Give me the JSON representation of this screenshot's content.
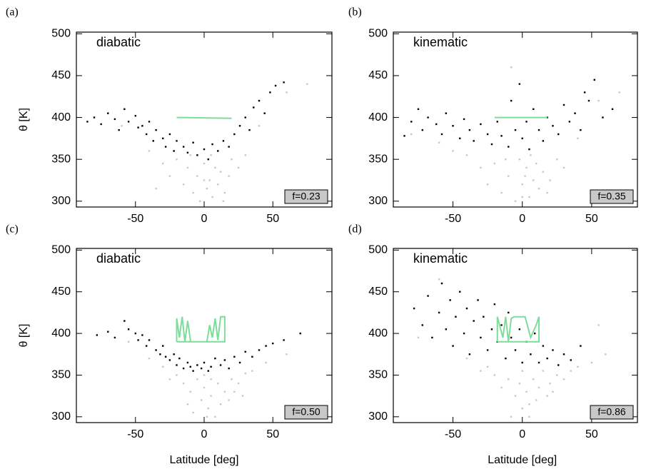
{
  "chart_data": [
    {
      "type": "scatter",
      "panel_label": "(a)",
      "annotation": "diabatic",
      "badge": "f=0.23",
      "ylabel": "θ [K]",
      "xlim": [
        -93,
        93
      ],
      "ylim": [
        293,
        502
      ],
      "xticks": [
        -50,
        0,
        50
      ],
      "yticks": [
        300,
        350,
        400,
        450,
        500
      ],
      "series": [
        {
          "color": "#c8c8c8",
          "mode": "markers",
          "x": [
            -60,
            -40,
            -30,
            -25,
            -20,
            -15,
            -12,
            -8,
            -5,
            -3,
            0,
            2,
            4,
            6,
            8,
            10,
            12,
            15,
            18,
            20,
            25,
            30,
            40,
            60,
            75,
            -35,
            -10,
            0,
            5,
            14
          ],
          "values": [
            390,
            360,
            345,
            330,
            350,
            320,
            340,
            310,
            330,
            300,
            345,
            315,
            325,
            305,
            340,
            320,
            335,
            310,
            330,
            350,
            340,
            355,
            390,
            430,
            440,
            315,
            355,
            325,
            355,
            300
          ]
        },
        {
          "color": "#000000",
          "mode": "markers",
          "x": [
            -85,
            -80,
            -75,
            -70,
            -65,
            -62,
            -58,
            -55,
            -50,
            -48,
            -45,
            -42,
            -40,
            -37,
            -35,
            -30,
            -28,
            -25,
            -22,
            -20,
            -15,
            -12,
            -8,
            -5,
            0,
            3,
            6,
            10,
            14,
            18,
            22,
            26,
            30,
            33,
            36,
            40,
            44,
            48,
            52,
            58
          ],
          "values": [
            395,
            400,
            392,
            405,
            398,
            385,
            410,
            395,
            402,
            388,
            390,
            380,
            395,
            372,
            385,
            375,
            365,
            380,
            360,
            372,
            365,
            358,
            370,
            355,
            362,
            350,
            368,
            360,
            372,
            365,
            380,
            390,
            400,
            385,
            412,
            420,
            405,
            430,
            438,
            442
          ]
        },
        {
          "color": "#7ddc9a",
          "mode": "line",
          "x": [
            -20,
            20
          ],
          "values": [
            400,
            399
          ]
        }
      ]
    },
    {
      "type": "scatter",
      "panel_label": "(b)",
      "annotation": "kinematic",
      "badge": "f=0.35",
      "xlim": [
        -93,
        83
      ],
      "ylim": [
        293,
        502
      ],
      "xticks": [
        -50,
        0,
        50
      ],
      "yticks": [
        300,
        350,
        400,
        450,
        500
      ],
      "series": [
        {
          "color": "#c8c8c8",
          "mode": "markers",
          "x": [
            -80,
            -60,
            -40,
            -30,
            -25,
            -20,
            -15,
            -10,
            -5,
            -2,
            0,
            3,
            5,
            8,
            10,
            12,
            15,
            20,
            25,
            30,
            40,
            55,
            70,
            -50,
            -8,
            0,
            6,
            18,
            -12,
            2
          ],
          "values": [
            380,
            370,
            355,
            340,
            320,
            345,
            310,
            330,
            300,
            350,
            320,
            340,
            305,
            325,
            345,
            315,
            335,
            325,
            350,
            340,
            375,
            420,
            430,
            360,
            460,
            305,
            355,
            310,
            350,
            330
          ]
        },
        {
          "color": "#000000",
          "mode": "markers",
          "x": [
            -85,
            -80,
            -75,
            -72,
            -68,
            -62,
            -58,
            -55,
            -50,
            -45,
            -42,
            -38,
            -35,
            -30,
            -25,
            -22,
            -18,
            -15,
            -10,
            -8,
            -5,
            -2,
            0,
            3,
            5,
            8,
            12,
            15,
            18,
            22,
            26,
            30,
            34,
            38,
            42,
            45,
            48,
            52,
            58,
            65
          ],
          "values": [
            378,
            395,
            410,
            385,
            400,
            392,
            380,
            405,
            390,
            375,
            398,
            385,
            372,
            392,
            380,
            368,
            395,
            378,
            365,
            420,
            385,
            440,
            375,
            395,
            362,
            410,
            385,
            372,
            400,
            390,
            380,
            415,
            395,
            405,
            385,
            430,
            420,
            445,
            400,
            410
          ]
        },
        {
          "color": "#7ddc9a",
          "mode": "line",
          "x": [
            -20,
            18
          ],
          "values": [
            400,
            400
          ]
        }
      ]
    },
    {
      "type": "scatter",
      "panel_label": "(c)",
      "annotation": "diabatic",
      "badge": "f=0.50",
      "ylabel": "θ [K]",
      "xlabel": "Latitude [deg]",
      "xlim": [
        -93,
        93
      ],
      "ylim": [
        293,
        502
      ],
      "xticks": [
        -50,
        0,
        50
      ],
      "yticks": [
        300,
        350,
        400,
        450,
        500
      ],
      "series": [
        {
          "color": "#c8c8c8",
          "mode": "markers",
          "x": [
            -40,
            -30,
            -20,
            -15,
            -10,
            -5,
            -2,
            0,
            3,
            5,
            8,
            10,
            12,
            15,
            20,
            25,
            30,
            -25,
            -8,
            0,
            18,
            35,
            45,
            60,
            -55,
            5,
            -12,
            22,
            2,
            28
          ],
          "values": [
            370,
            360,
            350,
            340,
            330,
            345,
            320,
            335,
            310,
            325,
            300,
            340,
            315,
            330,
            345,
            340,
            352,
            345,
            305,
            350,
            320,
            355,
            365,
            375,
            390,
            345,
            315,
            330,
            300,
            325
          ]
        },
        {
          "color": "#000000",
          "mode": "markers",
          "x": [
            -78,
            -70,
            -65,
            -58,
            -55,
            -50,
            -48,
            -45,
            -42,
            -40,
            -35,
            -32,
            -30,
            -28,
            -25,
            -22,
            -20,
            -18,
            -15,
            -12,
            -10,
            -8,
            -5,
            -2,
            0,
            3,
            5,
            8,
            12,
            15,
            18,
            22,
            26,
            30,
            35,
            40,
            45,
            50,
            58,
            70
          ],
          "values": [
            398,
            402,
            395,
            415,
            405,
            400,
            392,
            398,
            385,
            392,
            380,
            375,
            385,
            372,
            368,
            375,
            362,
            370,
            358,
            365,
            360,
            355,
            362,
            358,
            365,
            355,
            360,
            370,
            362,
            368,
            358,
            372,
            365,
            378,
            372,
            380,
            385,
            388,
            392,
            400
          ]
        },
        {
          "color": "#7ddc9a",
          "mode": "line",
          "x": [
            -20,
            -20,
            -18,
            -16,
            -14,
            -12,
            -10,
            -10,
            2,
            4,
            6,
            8,
            10,
            12,
            15,
            15,
            -20
          ],
          "values": [
            390,
            418,
            395,
            420,
            390,
            415,
            392,
            390,
            390,
            410,
            395,
            418,
            392,
            420,
            420,
            390,
            390
          ]
        }
      ]
    },
    {
      "type": "scatter",
      "panel_label": "(d)",
      "annotation": "kinematic",
      "badge": "f=0.86",
      "xlabel": "Latitude [deg]",
      "xlim": [
        -93,
        83
      ],
      "ylim": [
        293,
        502
      ],
      "xticks": [
        -50,
        0,
        50
      ],
      "yticks": [
        300,
        350,
        400,
        450,
        500
      ],
      "series": [
        {
          "color": "#c8c8c8",
          "mode": "markers",
          "x": [
            -40,
            -30,
            -20,
            -15,
            -10,
            -5,
            -2,
            0,
            3,
            5,
            8,
            10,
            12,
            15,
            20,
            25,
            30,
            -25,
            0,
            18,
            35,
            50,
            55,
            -60,
            -75,
            5,
            -8,
            22,
            40,
            60
          ],
          "values": [
            370,
            355,
            350,
            335,
            345,
            325,
            340,
            310,
            330,
            300,
            345,
            320,
            335,
            355,
            340,
            350,
            345,
            360,
            355,
            325,
            355,
            365,
            410,
            465,
            395,
            315,
            300,
            330,
            360,
            375
          ]
        },
        {
          "color": "#000000",
          "mode": "markers",
          "x": [
            -78,
            -72,
            -68,
            -65,
            -60,
            -58,
            -55,
            -52,
            -50,
            -48,
            -45,
            -42,
            -40,
            -38,
            -35,
            -32,
            -30,
            -28,
            -25,
            -22,
            -20,
            -18,
            -15,
            -12,
            -10,
            -8,
            -5,
            -2,
            0,
            3,
            6,
            9,
            12,
            15,
            18,
            22,
            26,
            30,
            35,
            42
          ],
          "values": [
            430,
            410,
            445,
            395,
            425,
            460,
            405,
            440,
            385,
            420,
            450,
            400,
            430,
            375,
            415,
            440,
            395,
            420,
            380,
            405,
            435,
            390,
            410,
            370,
            425,
            395,
            380,
            405,
            365,
            390,
            375,
            400,
            365,
            385,
            370,
            380,
            362,
            375,
            368,
            385
          ]
        },
        {
          "color": "#7ddc9a",
          "mode": "line",
          "x": [
            -18,
            -18,
            -14,
            -12,
            -10,
            -8,
            -6,
            2,
            6,
            10,
            12,
            12,
            -18
          ],
          "values": [
            390,
            420,
            395,
            420,
            390,
            418,
            420,
            420,
            395,
            410,
            420,
            390,
            390
          ]
        }
      ]
    }
  ]
}
